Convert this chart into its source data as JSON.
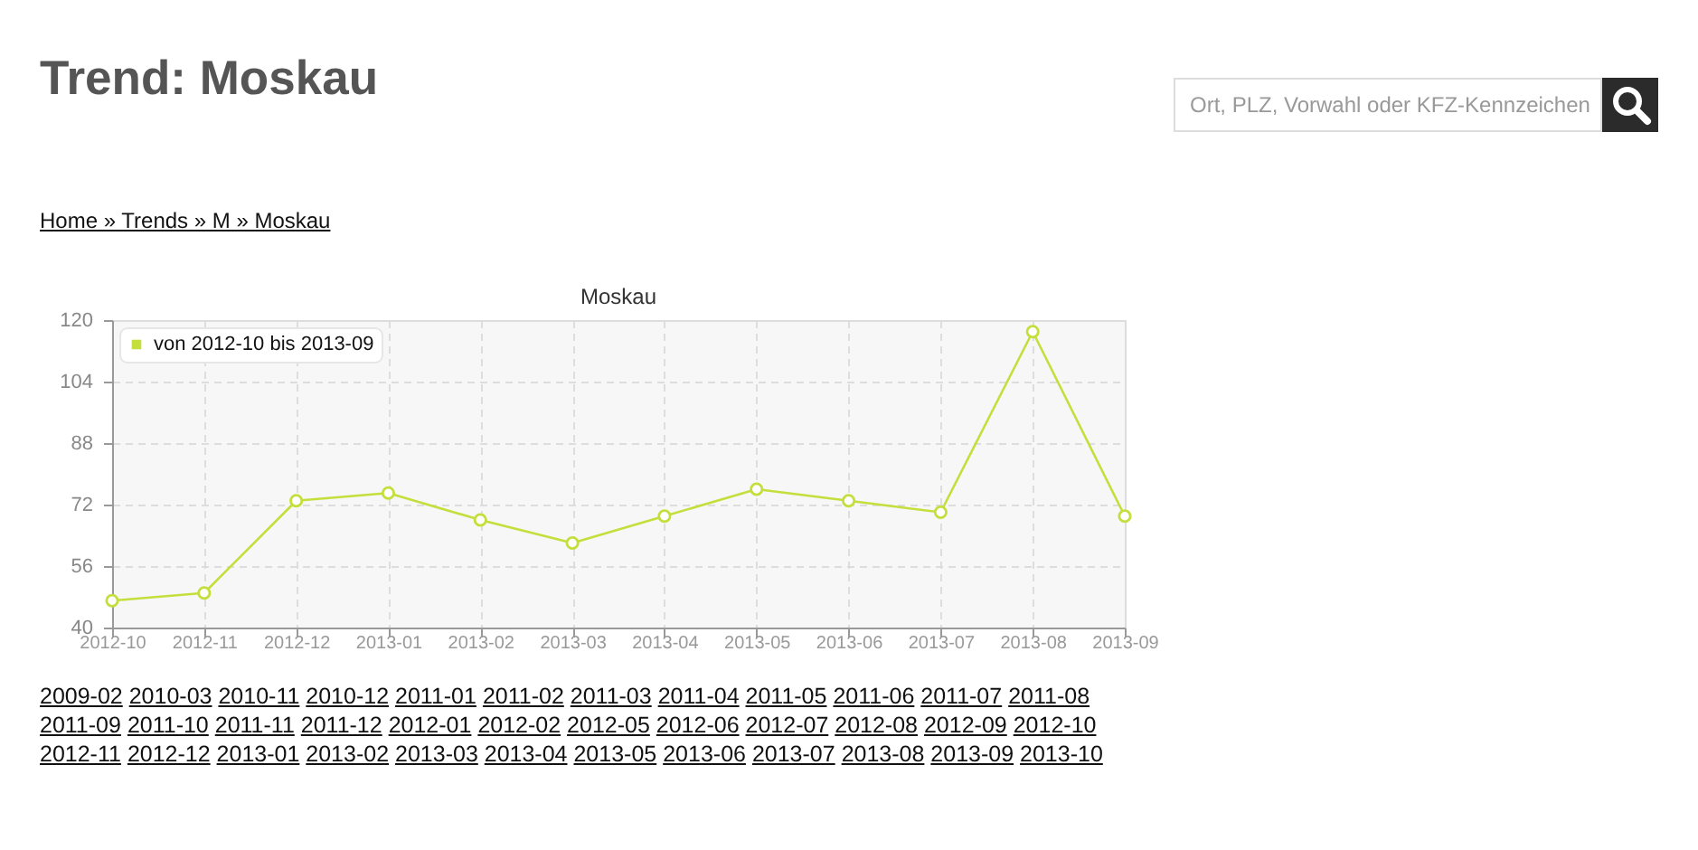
{
  "chart_data": {
    "type": "line",
    "title": "Moskau",
    "categories": [
      "2012-10",
      "2012-11",
      "2012-12",
      "2013-01",
      "2013-02",
      "2013-03",
      "2013-04",
      "2013-05",
      "2013-06",
      "2013-07",
      "2013-08",
      "2013-09"
    ],
    "series": [
      {
        "name": "von 2012-10 bis 2013-09",
        "color": "#c4df3b",
        "values": [
          47,
          49,
          73,
          75,
          68,
          62,
          69,
          76,
          73,
          70,
          117,
          69
        ]
      }
    ],
    "ylim": [
      40,
      120
    ],
    "yticks": [
      40,
      56,
      72,
      88,
      104,
      120
    ],
    "grid": true,
    "legend": "top left",
    "marker": "circle",
    "line_style": "solid",
    "annotations": [
      "Trend: Moskau",
      "Ort, PLZ, Vorwahl oder KFZ-Kennzeichen",
      "Home » Trends » M » Moskau",
      "2009-02",
      "2010-03",
      "2010-11",
      "2010-12",
      "2011-01",
      "2011-02",
      "2011-03",
      "2011-04",
      "2011-05",
      "2011-06",
      "2011-07",
      "2011-08",
      "2011-09",
      "2011-10",
      "2011-11",
      "2011-12",
      "2012-01",
      "2012-02",
      "2012-05",
      "2012-06",
      "2012-07",
      "2012-08",
      "2012-09",
      "2012-10",
      "2012-11",
      "2012-12",
      "2013-01",
      "2013-02",
      "2013-03",
      "2013-04",
      "2013-05",
      "2013-06",
      "2013-07",
      "2013-08",
      "2013-09",
      "2013-10"
    ]
  }
}
